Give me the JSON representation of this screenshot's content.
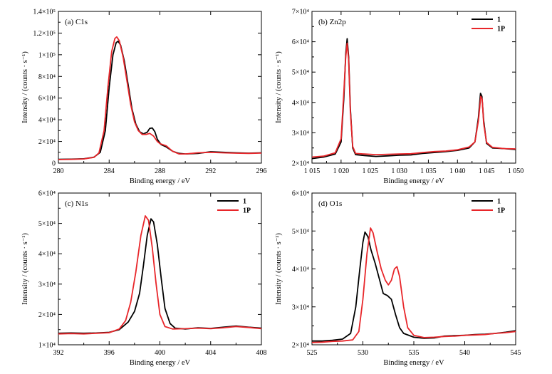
{
  "figure": {
    "series_colors": {
      "1": "#000000",
      "1P": "#e8262a"
    }
  },
  "chart_data": [
    {
      "type": "line",
      "title": "(a) C1s",
      "xlabel": "Binding energy / eV",
      "ylabel": "Intensity / (counts · s⁻¹)",
      "xlim": [
        280,
        296
      ],
      "ylim": [
        0,
        140000
      ],
      "xticks": [
        "280",
        "284",
        "288",
        "292",
        "296"
      ],
      "yticks": [
        "0",
        "2×10⁴",
        "4×10⁴",
        "6×10⁴",
        "8×10⁴",
        "1×10⁵",
        "1.2×10⁵",
        "1.4×10⁵"
      ],
      "legend": [],
      "series": [
        {
          "name": "1",
          "color": "#000000",
          "points": [
            [
              280,
              3500
            ],
            [
              281,
              3700
            ],
            [
              282,
              4000
            ],
            [
              282.8,
              5500
            ],
            [
              283.3,
              10000
            ],
            [
              283.7,
              30000
            ],
            [
              284.0,
              70000
            ],
            [
              284.3,
              100000
            ],
            [
              284.55,
              111000
            ],
            [
              284.7,
              112500
            ],
            [
              284.9,
              109000
            ],
            [
              285.2,
              94000
            ],
            [
              285.5,
              72000
            ],
            [
              285.8,
              50000
            ],
            [
              286.1,
              36000
            ],
            [
              286.4,
              29000
            ],
            [
              286.7,
              27000
            ],
            [
              287.0,
              28500
            ],
            [
              287.2,
              32000
            ],
            [
              287.4,
              32500
            ],
            [
              287.6,
              29000
            ],
            [
              287.8,
              22000
            ],
            [
              288.1,
              17000
            ],
            [
              288.5,
              15000
            ],
            [
              289.0,
              11000
            ],
            [
              289.5,
              9000
            ],
            [
              290.0,
              8500
            ],
            [
              291.0,
              9000
            ],
            [
              292.0,
              10500
            ],
            [
              293.0,
              10000
            ],
            [
              294.0,
              9500
            ],
            [
              295.0,
              9200
            ],
            [
              296.0,
              9500
            ]
          ]
        },
        {
          "name": "1P",
          "color": "#e8262a",
          "points": [
            [
              280,
              3300
            ],
            [
              281,
              3500
            ],
            [
              282,
              3900
            ],
            [
              282.8,
              5300
            ],
            [
              283.2,
              9500
            ],
            [
              283.6,
              30000
            ],
            [
              283.9,
              70000
            ],
            [
              284.2,
              103000
            ],
            [
              284.45,
              115000
            ],
            [
              284.6,
              116500
            ],
            [
              284.8,
              113000
            ],
            [
              285.1,
              98000
            ],
            [
              285.4,
              76000
            ],
            [
              285.7,
              54000
            ],
            [
              286.0,
              38000
            ],
            [
              286.3,
              30000
            ],
            [
              286.6,
              26500
            ],
            [
              286.9,
              26500
            ],
            [
              287.2,
              27500
            ],
            [
              287.5,
              25000
            ],
            [
              287.8,
              20000
            ],
            [
              288.0,
              18000
            ],
            [
              288.5,
              16000
            ],
            [
              289.0,
              11000
            ],
            [
              289.5,
              8500
            ],
            [
              290.0,
              8500
            ],
            [
              291.0,
              9500
            ],
            [
              292.0,
              10000
            ],
            [
              293.0,
              9500
            ],
            [
              294.0,
              9200
            ],
            [
              295.0,
              9000
            ],
            [
              296.0,
              9300
            ]
          ]
        }
      ]
    },
    {
      "type": "line",
      "title": "(b) Zn2p",
      "xlabel": "Binding energy / eV",
      "ylabel": "Intensity / (counts · s⁻¹)",
      "xlim": [
        1015,
        1050
      ],
      "ylim": [
        20000,
        70000
      ],
      "xticks": [
        "1 015",
        "1 020",
        "1 025",
        "1 030",
        "1 035",
        "1 040",
        "1 045",
        "1 050"
      ],
      "yticks": [
        "2×10⁴",
        "3×10⁴",
        "4×10⁴",
        "5×10⁴",
        "6×10⁴",
        "7×10⁴"
      ],
      "legend": [
        "1",
        "1P"
      ],
      "series": [
        {
          "name": "1",
          "color": "#000000",
          "points": [
            [
              1015,
              21500
            ],
            [
              1017,
              22000
            ],
            [
              1019,
              23000
            ],
            [
              1020,
              27000
            ],
            [
              1020.5,
              42000
            ],
            [
              1020.8,
              56000
            ],
            [
              1021.05,
              61000
            ],
            [
              1021.3,
              55000
            ],
            [
              1021.6,
              38000
            ],
            [
              1022.0,
              25000
            ],
            [
              1022.5,
              22800
            ],
            [
              1024,
              22500
            ],
            [
              1026,
              22200
            ],
            [
              1028,
              22400
            ],
            [
              1030,
              22600
            ],
            [
              1032,
              22700
            ],
            [
              1034,
              23200
            ],
            [
              1036,
              23500
            ],
            [
              1038,
              23800
            ],
            [
              1040,
              24200
            ],
            [
              1042,
              25000
            ],
            [
              1043,
              27000
            ],
            [
              1043.6,
              35000
            ],
            [
              1043.95,
              43000
            ],
            [
              1044.2,
              42000
            ],
            [
              1044.5,
              34000
            ],
            [
              1045.0,
              26500
            ],
            [
              1046,
              25000
            ],
            [
              1048,
              24800
            ],
            [
              1050,
              24500
            ]
          ]
        },
        {
          "name": "1P",
          "color": "#e8262a",
          "points": [
            [
              1015,
              22000
            ],
            [
              1017,
              22300
            ],
            [
              1019,
              23400
            ],
            [
              1020,
              28000
            ],
            [
              1020.5,
              44000
            ],
            [
              1020.8,
              55000
            ],
            [
              1021.05,
              59500
            ],
            [
              1021.3,
              54000
            ],
            [
              1021.6,
              37000
            ],
            [
              1022.0,
              25500
            ],
            [
              1022.5,
              23200
            ],
            [
              1024,
              23000
            ],
            [
              1026,
              22800
            ],
            [
              1028,
              22900
            ],
            [
              1030,
              23000
            ],
            [
              1032,
              23100
            ],
            [
              1034,
              23500
            ],
            [
              1036,
              23800
            ],
            [
              1038,
              24000
            ],
            [
              1040,
              24400
            ],
            [
              1042,
              25300
            ],
            [
              1043,
              27000
            ],
            [
              1043.6,
              34000
            ],
            [
              1044.0,
              42000
            ],
            [
              1044.25,
              41000
            ],
            [
              1044.5,
              33000
            ],
            [
              1045.0,
              26800
            ],
            [
              1046,
              25200
            ],
            [
              1048,
              24800
            ],
            [
              1050,
              24700
            ]
          ]
        }
      ]
    },
    {
      "type": "line",
      "title": "(c) N1s",
      "xlabel": "Binding energy / eV",
      "ylabel": "Intensity / (counts · s⁻¹)",
      "xlim": [
        392,
        408
      ],
      "ylim": [
        10000,
        60000
      ],
      "xticks": [
        "392",
        "396",
        "400",
        "404",
        "408"
      ],
      "yticks": [
        "1×10⁴",
        "2×10⁴",
        "3×10⁴",
        "4×10⁴",
        "5×10⁴",
        "6×10⁴"
      ],
      "legend": [
        "1",
        "1P"
      ],
      "series": [
        {
          "name": "1",
          "color": "#000000",
          "points": [
            [
              392,
              13800
            ],
            [
              393,
              13900
            ],
            [
              394,
              13800
            ],
            [
              395,
              13900
            ],
            [
              396,
              14100
            ],
            [
              396.8,
              15000
            ],
            [
              397.5,
              17500
            ],
            [
              398.0,
              21000
            ],
            [
              398.4,
              27000
            ],
            [
              398.7,
              36000
            ],
            [
              399.0,
              46000
            ],
            [
              399.3,
              51500
            ],
            [
              399.5,
              50500
            ],
            [
              399.8,
              43000
            ],
            [
              400.1,
              32000
            ],
            [
              400.4,
              22000
            ],
            [
              400.8,
              17000
            ],
            [
              401.2,
              15500
            ],
            [
              402,
              15200
            ],
            [
              403,
              15600
            ],
            [
              404,
              15400
            ],
            [
              405,
              15800
            ],
            [
              406,
              16200
            ],
            [
              407,
              15800
            ],
            [
              408,
              15500
            ]
          ]
        },
        {
          "name": "1P",
          "color": "#e8262a",
          "points": [
            [
              392,
              13600
            ],
            [
              393,
              13700
            ],
            [
              394,
              13600
            ],
            [
              395,
              13800
            ],
            [
              396,
              14000
            ],
            [
              396.8,
              15200
            ],
            [
              397.3,
              18000
            ],
            [
              397.7,
              24000
            ],
            [
              398.1,
              34000
            ],
            [
              398.5,
              46000
            ],
            [
              398.85,
              52500
            ],
            [
              399.1,
              51000
            ],
            [
              399.4,
              42000
            ],
            [
              399.7,
              30000
            ],
            [
              400.0,
              20000
            ],
            [
              400.4,
              16000
            ],
            [
              401,
              15200
            ],
            [
              402,
              15300
            ],
            [
              403,
              15500
            ],
            [
              404,
              15300
            ],
            [
              405,
              15600
            ],
            [
              406,
              16000
            ],
            [
              407,
              15700
            ],
            [
              408,
              15300
            ]
          ]
        }
      ]
    },
    {
      "type": "line",
      "title": "(d) O1s",
      "xlabel": "Binding energy / eV",
      "ylabel": "Intensity / (counts · s⁻¹)",
      "xlim": [
        525,
        545
      ],
      "ylim": [
        20000,
        60000
      ],
      "xticks": [
        "525",
        "530",
        "535",
        "540",
        "545"
      ],
      "yticks": [
        "2×10⁴",
        "3×10⁴",
        "4×10⁴",
        "5×10⁴",
        "6×10⁴"
      ],
      "legend": [
        "1",
        "1P"
      ],
      "series": [
        {
          "name": "1",
          "color": "#000000",
          "points": [
            [
              525,
              21000
            ],
            [
              526,
              21000
            ],
            [
              527,
              21200
            ],
            [
              528,
              21500
            ],
            [
              528.8,
              23000
            ],
            [
              529.3,
              30000
            ],
            [
              529.7,
              40000
            ],
            [
              530.0,
              47000
            ],
            [
              530.2,
              49700
            ],
            [
              530.5,
              48500
            ],
            [
              530.8,
              45000
            ],
            [
              531.2,
              41500
            ],
            [
              531.6,
              37500
            ],
            [
              532.0,
              33500
            ],
            [
              532.4,
              33000
            ],
            [
              532.8,
              32000
            ],
            [
              533.2,
              28000
            ],
            [
              533.6,
              24500
            ],
            [
              534.0,
              23000
            ],
            [
              535,
              22000
            ],
            [
              536,
              21700
            ],
            [
              537,
              21800
            ],
            [
              538,
              22300
            ],
            [
              539,
              22400
            ],
            [
              540,
              22500
            ],
            [
              541,
              22700
            ],
            [
              542,
              22800
            ],
            [
              543,
              23000
            ],
            [
              544,
              23300
            ],
            [
              545,
              23700
            ]
          ]
        },
        {
          "name": "1P",
          "color": "#e8262a",
          "points": [
            [
              525,
              20600
            ],
            [
              526,
              20700
            ],
            [
              527,
              20900
            ],
            [
              528,
              21000
            ],
            [
              529,
              21300
            ],
            [
              529.6,
              23500
            ],
            [
              530.0,
              32000
            ],
            [
              530.4,
              44000
            ],
            [
              530.75,
              50800
            ],
            [
              531.0,
              49500
            ],
            [
              531.4,
              44500
            ],
            [
              531.8,
              40000
            ],
            [
              532.2,
              37000
            ],
            [
              532.5,
              35800
            ],
            [
              532.8,
              37000
            ],
            [
              533.1,
              40000
            ],
            [
              533.35,
              40600
            ],
            [
              533.6,
              38000
            ],
            [
              534.0,
              30000
            ],
            [
              534.4,
              24500
            ],
            [
              535,
              22500
            ],
            [
              536,
              21900
            ],
            [
              537,
              22000
            ],
            [
              538,
              22200
            ],
            [
              539,
              22300
            ],
            [
              540,
              22500
            ],
            [
              541,
              22600
            ],
            [
              542,
              22700
            ],
            [
              543,
              23000
            ],
            [
              544,
              23200
            ],
            [
              545,
              23500
            ]
          ]
        }
      ]
    }
  ]
}
